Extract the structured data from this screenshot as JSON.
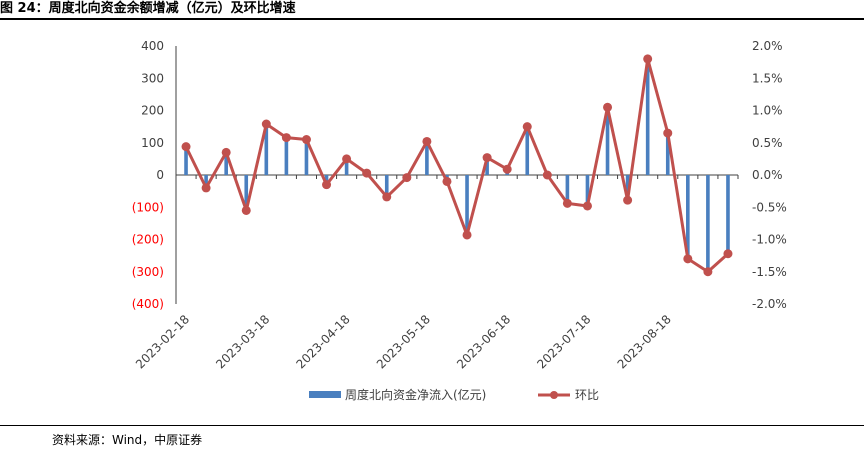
{
  "title": "图 24：周度北向资金余额增减（亿元）及环比增速",
  "source": "资料来源：Wind，中原证券",
  "colors": {
    "bar": "#4a7fbf",
    "line": "#c0504d",
    "negative_tick": "#ff0000",
    "axis": "#404040",
    "text": "#404040"
  },
  "chart_data": {
    "type": "bar",
    "combo": "bar + line (dual axis)",
    "x_tick_labels": [
      "2023-02-18",
      "2023-03-18",
      "2023-04-18",
      "2023-05-18",
      "2023-06-18",
      "2023-07-18",
      "2023-08-18"
    ],
    "left_axis": {
      "ylim": [
        -400,
        400
      ],
      "ticks": [
        "400",
        "300",
        "200",
        "100",
        "0",
        "(100)",
        "(200)",
        "(300)",
        "(400)"
      ]
    },
    "right_axis": {
      "ylim": [
        -2.0,
        2.0
      ],
      "ticks": [
        "2.0%",
        "1.5%",
        "1.0%",
        "0.5%",
        "0.0%",
        "-0.5%",
        "-1.0%",
        "-1.5%",
        "-2.0%"
      ]
    },
    "series": [
      {
        "name": "周度北向资金净流入(亿元)",
        "type": "bar",
        "axis": "left",
        "values": [
          90,
          -40,
          70,
          -110,
          160,
          120,
          110,
          -30,
          50,
          0,
          -65,
          0,
          105,
          -20,
          -185,
          55,
          20,
          150,
          0,
          -90,
          -95,
          210,
          -75,
          360,
          130,
          -265,
          -300,
          -245
        ]
      },
      {
        "name": "环比",
        "type": "line",
        "axis": "right",
        "values": [
          0.44,
          -0.2,
          0.35,
          -0.55,
          0.79,
          0.58,
          0.55,
          -0.15,
          0.25,
          0.03,
          -0.34,
          -0.04,
          0.52,
          -0.1,
          -0.93,
          0.27,
          0.09,
          0.75,
          0.0,
          -0.44,
          -0.48,
          1.05,
          -0.39,
          1.8,
          0.65,
          -1.3,
          -1.5,
          -1.22
        ]
      }
    ],
    "legend_position": "bottom"
  }
}
